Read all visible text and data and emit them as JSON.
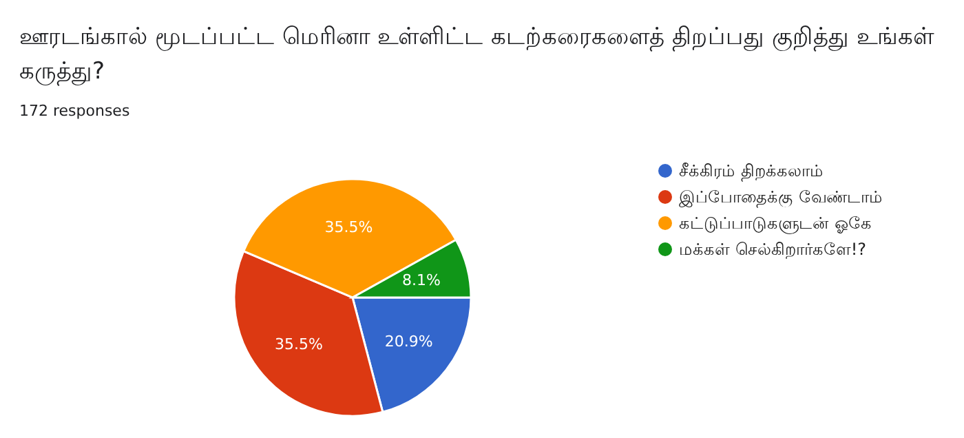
{
  "chart_data": {
    "type": "pie",
    "title": "ஊரடங்கால் மூடப்பட்ட மெரினா உள்ளிட்ட கடற்கரைகளைத் திறப்பது குறித்து உங்கள் கருத்து?",
    "subtitle": "172 responses",
    "categories": [
      "சீக்கிரம் திறக்கலாம்",
      "இப்போதைக்கு வேண்டாம்",
      "கட்டுப்பாடுகளுடன் ஓகே",
      "மக்கள் செல்கிறார்களே!?"
    ],
    "values": [
      20.9,
      35.5,
      35.5,
      8.1
    ],
    "value_labels": [
      "20.9%",
      "35.5%",
      "35.5%",
      "8.1%"
    ],
    "colors": [
      "#3366cc",
      "#dc3912",
      "#ff9900",
      "#109618"
    ],
    "legend": "right"
  }
}
